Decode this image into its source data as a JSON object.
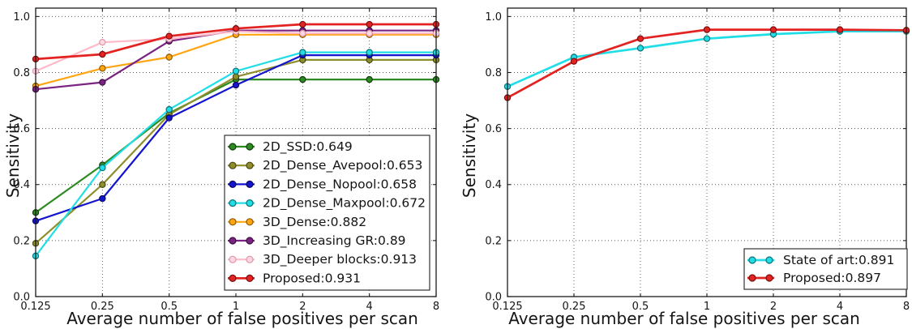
{
  "figure": {
    "background": "#ffffff",
    "axis_color": "#1a1a1a",
    "grid_color": "#555555",
    "text_color": "#151515"
  },
  "chart_data": [
    {
      "type": "line",
      "title": "",
      "xlabel": "Average number of false positives per scan",
      "ylabel": "Sensitivity",
      "x_scale": "log2",
      "x": [
        0.125,
        0.25,
        0.5,
        1,
        2,
        4,
        8
      ],
      "x_tick_labels": [
        "0.125",
        "0.25",
        "0.5",
        "1",
        "2",
        "4",
        "8"
      ],
      "y_ticks": [
        0.0,
        0.2,
        0.4,
        0.6,
        0.8,
        1.0
      ],
      "y_tick_labels": [
        "0.0",
        "0.2",
        "0.4",
        "0.6",
        "0.8",
        "1.0"
      ],
      "ylim": [
        0,
        1.03
      ],
      "grid": true,
      "legend_position": "lower-right",
      "series": [
        {
          "name": "2D_SSD:0.649",
          "color": "#2e8b22",
          "marker_fill": "#2e8b22",
          "marker_edge": "#123c0e",
          "lw": 2.2,
          "values": [
            0.3,
            0.47,
            0.655,
            0.775,
            0.775,
            0.775,
            0.775
          ]
        },
        {
          "name": "2D_Dense_Avepool:0.653",
          "color": "#8e8e2c",
          "marker_fill": "#8e8e2c",
          "marker_edge": "#474712",
          "lw": 2.2,
          "values": [
            0.19,
            0.4,
            0.65,
            0.785,
            0.845,
            0.845,
            0.845
          ]
        },
        {
          "name": "2D_Dense_Nopool:0.658",
          "color": "#1515cd",
          "marker_fill": "#1515cd",
          "marker_edge": "#0a0a62",
          "lw": 2.2,
          "values": [
            0.27,
            0.35,
            0.638,
            0.755,
            0.862,
            0.862,
            0.862
          ]
        },
        {
          "name": "2D_Dense_Maxpool:0.672",
          "color": "#21dde6",
          "marker_fill": "#21dde6",
          "marker_edge": "#0c7074",
          "lw": 2.2,
          "values": [
            0.145,
            0.46,
            0.668,
            0.805,
            0.872,
            0.872,
            0.872
          ]
        },
        {
          "name": "3D_Dense:0.882",
          "color": "#ffa510",
          "marker_fill": "#ffa510",
          "marker_edge": "#8a5a05",
          "lw": 2.2,
          "values": [
            0.752,
            0.815,
            0.855,
            0.935,
            0.935,
            0.935,
            0.935
          ]
        },
        {
          "name": "3D_Increasing GR:0.89",
          "color": "#7b2382",
          "marker_fill": "#7b2382",
          "marker_edge": "#3c1040",
          "lw": 2.2,
          "values": [
            0.74,
            0.765,
            0.912,
            0.95,
            0.95,
            0.95,
            0.95
          ]
        },
        {
          "name": "3D_Deeper blocks:0.913",
          "color": "#ffb9c8",
          "marker_fill": "#fcd9e2",
          "marker_edge": "#e294a8",
          "lw": 2.2,
          "values": [
            0.805,
            0.908,
            0.92,
            0.947,
            0.94,
            0.94,
            0.94
          ]
        },
        {
          "name": "Proposed:0.931",
          "color": "#e32322",
          "marker_fill": "#e32322",
          "marker_edge": "#77100f",
          "lw": 2.7,
          "values": [
            0.848,
            0.865,
            0.93,
            0.957,
            0.972,
            0.972,
            0.972
          ]
        }
      ]
    },
    {
      "type": "line",
      "title": "",
      "xlabel": "Average number of false positives per scan",
      "ylabel": "Sensitivity",
      "x_scale": "log2",
      "x": [
        0.125,
        0.25,
        0.5,
        1,
        2,
        4,
        8
      ],
      "x_tick_labels": [
        "0.125",
        "0.25",
        "0.5",
        "1",
        "2",
        "4",
        "8"
      ],
      "y_ticks": [
        0.0,
        0.2,
        0.4,
        0.6,
        0.8,
        1.0
      ],
      "y_tick_labels": [
        "0.0",
        "0.2",
        "0.4",
        "0.6",
        "0.8",
        "1.0"
      ],
      "ylim": [
        0,
        1.03
      ],
      "grid": true,
      "legend_position": "lower-right",
      "series": [
        {
          "name": "State of art:0.891",
          "color": "#21dde6",
          "marker_fill": "#21dde6",
          "marker_edge": "#0c7074",
          "lw": 2.7,
          "values": [
            0.75,
            0.855,
            0.887,
            0.921,
            0.937,
            0.947,
            0.947
          ]
        },
        {
          "name": "Proposed:0.897",
          "color": "#e32322",
          "marker_fill": "#e32322",
          "marker_edge": "#77100f",
          "lw": 2.7,
          "values": [
            0.71,
            0.84,
            0.921,
            0.953,
            0.953,
            0.953,
            0.951
          ]
        }
      ]
    }
  ]
}
